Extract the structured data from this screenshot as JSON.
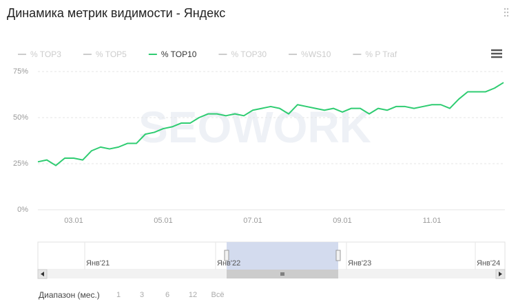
{
  "chart_data": {
    "type": "line",
    "title": "Динамика метрик видимости - Яндекс",
    "watermark": "SEOWORK",
    "categories": [
      null,
      null,
      null,
      null,
      "03.01",
      null,
      null,
      null,
      null,
      null,
      null,
      null,
      null,
      null,
      "05.01",
      null,
      null,
      null,
      null,
      null,
      null,
      null,
      null,
      null,
      "07.01",
      null,
      null,
      null,
      null,
      null,
      null,
      null,
      null,
      null,
      "09.01",
      null,
      null,
      null,
      null,
      null,
      null,
      null,
      null,
      null,
      "11.01",
      null,
      null,
      null,
      null,
      null,
      null,
      null,
      null
    ],
    "series": [
      {
        "name": "% TOP3",
        "color": "#cccccc",
        "visible": false
      },
      {
        "name": "% TOP5",
        "color": "#cccccc",
        "visible": false
      },
      {
        "name": "% TOP10",
        "color": "#2ecc71",
        "visible": true,
        "values": [
          26,
          27,
          24,
          28,
          28,
          27,
          32,
          34,
          33,
          34,
          36,
          36,
          41,
          42,
          44,
          45,
          47,
          47,
          50,
          52,
          52,
          51,
          52,
          51,
          54,
          55,
          56,
          55,
          52,
          57,
          56,
          55,
          54,
          55,
          53,
          55,
          55,
          52,
          55,
          54,
          56,
          56,
          55,
          56,
          57,
          57,
          55,
          60,
          64,
          64,
          64,
          66,
          69
        ]
      },
      {
        "name": "% TOP30",
        "color": "#cccccc",
        "visible": false
      },
      {
        "name": "%WS10",
        "color": "#cccccc",
        "visible": false
      },
      {
        "name": "% P Traf",
        "color": "#cccccc",
        "visible": false
      }
    ],
    "ylim": [
      0,
      75
    ],
    "yticks": [
      {
        "value": 0,
        "label": "0%"
      },
      {
        "value": 25,
        "label": "25%"
      },
      {
        "value": 50,
        "label": "50%"
      },
      {
        "value": 75,
        "label": "75%"
      }
    ],
    "grid": true,
    "navigator": {
      "labels": [
        "Янв'21",
        "Янв'22",
        "Янв'23",
        "Янв'24"
      ]
    },
    "range_selector": {
      "label": "Диапазон (мес.)",
      "buttons": [
        "1",
        "3",
        "6",
        "12",
        "Всё"
      ]
    }
  }
}
